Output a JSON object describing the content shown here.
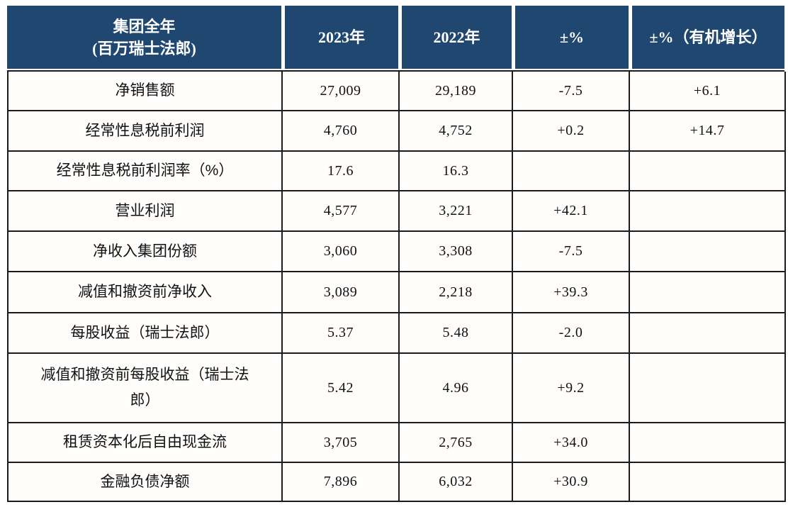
{
  "colors": {
    "header_bg": "#1f4770",
    "header_text": "#ffffff",
    "border": "#1b1b1b"
  },
  "table": {
    "columns": [
      "集团全年\n(百万瑞士法郎)",
      "2023年",
      "2022年",
      "±%",
      "±%（有机增长）"
    ],
    "rows": [
      {
        "label": "净销售额",
        "y2023": "27,009",
        "y2022": "29,189",
        "change": "-7.5",
        "organic": "+6.1"
      },
      {
        "label": "经常性息税前利润",
        "y2023": "4,760",
        "y2022": "4,752",
        "change": "+0.2",
        "organic": "+14.7"
      },
      {
        "label": "经常性息税前利润率（%）",
        "y2023": "17.6",
        "y2022": "16.3",
        "change": "",
        "organic": ""
      },
      {
        "label": "营业利润",
        "y2023": "4,577",
        "y2022": "3,221",
        "change": "+42.1",
        "organic": ""
      },
      {
        "label": "净收入集团份额",
        "y2023": "3,060",
        "y2022": "3,308",
        "change": "-7.5",
        "organic": ""
      },
      {
        "label": "减值和撤资前净收入",
        "y2023": "3,089",
        "y2022": "2,218",
        "change": "+39.3",
        "organic": ""
      },
      {
        "label": "每股收益（瑞士法郎）",
        "y2023": "5.37",
        "y2022": "5.48",
        "change": "-2.0",
        "organic": ""
      },
      {
        "label": "减值和撤资前每股收益（瑞士法\n郎）",
        "y2023": "5.42",
        "y2022": "4.96",
        "change": "+9.2",
        "organic": ""
      },
      {
        "label": "租赁资本化后自由现金流",
        "y2023": "3,705",
        "y2022": "2,765",
        "change": "+34.0",
        "organic": ""
      },
      {
        "label": "金融负债净额",
        "y2023": "7,896",
        "y2022": "6,032",
        "change": "+30.9",
        "organic": ""
      }
    ]
  }
}
